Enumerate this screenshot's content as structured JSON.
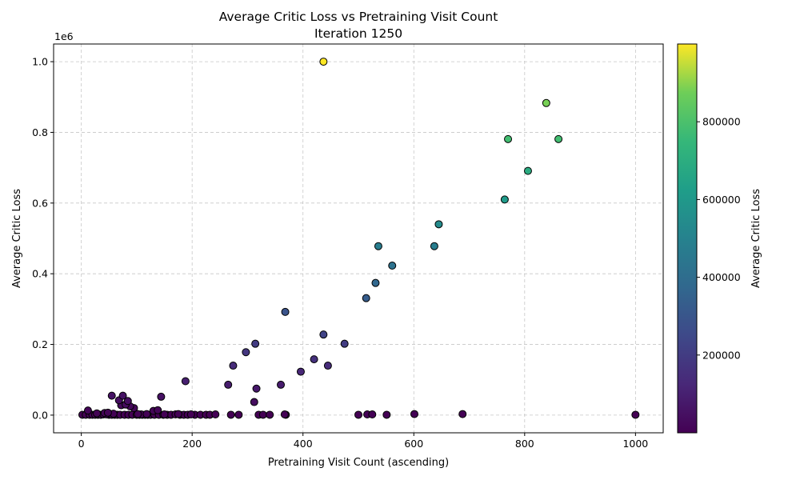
{
  "chart_data": {
    "type": "scatter",
    "title": "Average Critic Loss vs Pretraining Visit Count",
    "subtitle": "Iteration 1250",
    "xlabel": "Pretraining Visit Count (ascending)",
    "ylabel": "Average Critic Loss",
    "y_offset_label": "1e6",
    "xlim": [
      -50,
      1050
    ],
    "ylim": [
      -50000,
      1050000
    ],
    "xticks": [
      0,
      200,
      400,
      600,
      800,
      1000
    ],
    "xtick_labels": [
      "0",
      "200",
      "400",
      "600",
      "800",
      "1000"
    ],
    "yticks": [
      0,
      200000,
      400000,
      600000,
      800000,
      1000000
    ],
    "ytick_labels": [
      "0.0",
      "0.2",
      "0.4",
      "0.6",
      "0.8",
      "1.0"
    ],
    "grid": true,
    "colormap": "viridis",
    "colorbar": {
      "label": "Average Critic Loss",
      "min": 0,
      "max": 1000000,
      "ticks": [
        200000,
        400000,
        600000,
        800000
      ],
      "tick_labels": [
        "200000",
        "400000",
        "600000",
        "800000"
      ]
    },
    "points": [
      [
        437,
        1000000
      ],
      [
        839,
        883000
      ],
      [
        770,
        781000
      ],
      [
        861,
        781000
      ],
      [
        806,
        691000
      ],
      [
        764,
        610000
      ],
      [
        645,
        540000
      ],
      [
        536,
        478000
      ],
      [
        637,
        478000
      ],
      [
        561,
        423000
      ],
      [
        531,
        374000
      ],
      [
        514,
        331000
      ],
      [
        368,
        292000
      ],
      [
        437,
        228000
      ],
      [
        314,
        202000
      ],
      [
        475,
        202000
      ],
      [
        297,
        178000
      ],
      [
        420,
        158000
      ],
      [
        274,
        140000
      ],
      [
        445,
        140000
      ],
      [
        396,
        123000
      ],
      [
        188,
        96000
      ],
      [
        265,
        86000
      ],
      [
        360,
        86000
      ],
      [
        316,
        75000
      ],
      [
        55,
        55000
      ],
      [
        75,
        55000
      ],
      [
        144,
        52000
      ],
      [
        84,
        40000
      ],
      [
        312,
        37000
      ],
      [
        68,
        42000
      ],
      [
        72,
        28000
      ],
      [
        80,
        30000
      ],
      [
        88,
        25000
      ],
      [
        95,
        20000
      ],
      [
        12,
        13000
      ],
      [
        130,
        12000
      ],
      [
        138,
        14000
      ],
      [
        2,
        1000
      ],
      [
        8,
        1000
      ],
      [
        15,
        1000
      ],
      [
        20,
        1000
      ],
      [
        25,
        1000
      ],
      [
        30,
        1000
      ],
      [
        35,
        1000
      ],
      [
        40,
        2000
      ],
      [
        45,
        2000
      ],
      [
        50,
        1000
      ],
      [
        55,
        1000
      ],
      [
        60,
        1000
      ],
      [
        65,
        1000
      ],
      [
        70,
        1000
      ],
      [
        78,
        1000
      ],
      [
        85,
        1000
      ],
      [
        92,
        1000
      ],
      [
        100,
        1000
      ],
      [
        105,
        1000
      ],
      [
        110,
        1000
      ],
      [
        115,
        1000
      ],
      [
        120,
        1000
      ],
      [
        125,
        1000
      ],
      [
        132,
        1000
      ],
      [
        140,
        1000
      ],
      [
        148,
        1000
      ],
      [
        155,
        1000
      ],
      [
        162,
        1000
      ],
      [
        170,
        2000
      ],
      [
        178,
        1000
      ],
      [
        185,
        1000
      ],
      [
        192,
        1000
      ],
      [
        205,
        1000
      ],
      [
        215,
        1000
      ],
      [
        225,
        1000
      ],
      [
        232,
        1000
      ],
      [
        242,
        2000
      ],
      [
        270,
        1000
      ],
      [
        284,
        1000
      ],
      [
        320,
        1000
      ],
      [
        328,
        1000
      ],
      [
        340,
        1000
      ],
      [
        367,
        2000
      ],
      [
        369,
        1000
      ],
      [
        500,
        1000
      ],
      [
        516,
        2000
      ],
      [
        525,
        2000
      ],
      [
        551,
        1000
      ],
      [
        601,
        3000
      ],
      [
        688,
        3000
      ],
      [
        1000,
        1000
      ],
      [
        28,
        5000
      ],
      [
        42,
        6000
      ],
      [
        48,
        7000
      ],
      [
        58,
        4000
      ],
      [
        102,
        3000
      ],
      [
        108,
        2000
      ],
      [
        118,
        3000
      ],
      [
        150,
        2000
      ],
      [
        175,
        3000
      ],
      [
        198,
        2000
      ]
    ]
  }
}
